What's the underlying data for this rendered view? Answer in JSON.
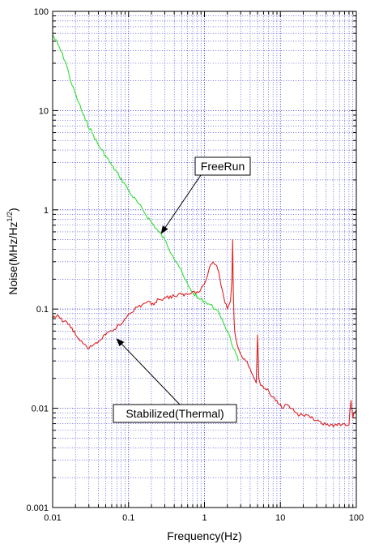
{
  "chart_data": {
    "type": "line",
    "title": "",
    "xlabel": "Frequency(Hz)",
    "ylabel_main": "Noise(MHz/Hz",
    "ylabel_sup": "1/2",
    "ylabel_end": ")",
    "xscale": "log",
    "yscale": "log",
    "xlim": [
      0.01,
      100
    ],
    "ylim": [
      0.001,
      100
    ],
    "grid": true,
    "x_ticks": [
      {
        "value": 0.01,
        "label": "0.01"
      },
      {
        "value": 0.1,
        "label": "0.1"
      },
      {
        "value": 1,
        "label": "1"
      },
      {
        "value": 10,
        "label": "10"
      },
      {
        "value": 100,
        "label": "100"
      }
    ],
    "y_ticks": [
      {
        "value": 0.001,
        "label": "0.001"
      },
      {
        "value": 0.01,
        "label": "0.01"
      },
      {
        "value": 0.1,
        "label": "0.1"
      },
      {
        "value": 1,
        "label": "1"
      },
      {
        "value": 10,
        "label": "10"
      },
      {
        "value": 100,
        "label": "100"
      }
    ],
    "series": [
      {
        "name": "FreeRun",
        "color": "#33dd33",
        "x": [
          0.01,
          0.012,
          0.015,
          0.018,
          0.022,
          0.027,
          0.033,
          0.04,
          0.05,
          0.06,
          0.075,
          0.09,
          0.11,
          0.13,
          0.16,
          0.2,
          0.25,
          0.3,
          0.38,
          0.45,
          0.55,
          0.65,
          0.8,
          1.0,
          1.2,
          1.4,
          1.7,
          2.0,
          2.2,
          2.4,
          2.6,
          2.8
        ],
        "y": [
          58,
          45,
          30,
          18,
          12,
          8,
          6,
          4.5,
          3.5,
          2.8,
          2.2,
          1.8,
          1.4,
          1.2,
          0.95,
          0.75,
          0.6,
          0.5,
          0.35,
          0.28,
          0.2,
          0.16,
          0.13,
          0.12,
          0.11,
          0.1,
          0.08,
          0.06,
          0.05,
          0.04,
          0.035,
          0.03
        ]
      },
      {
        "name": "Stabilized(Thermal)",
        "color": "#dd2222",
        "x": [
          0.01,
          0.012,
          0.014,
          0.016,
          0.018,
          0.02,
          0.022,
          0.025,
          0.028,
          0.03,
          0.033,
          0.036,
          0.04,
          0.045,
          0.05,
          0.06,
          0.07,
          0.08,
          0.1,
          0.12,
          0.15,
          0.18,
          0.2,
          0.25,
          0.3,
          0.4,
          0.5,
          0.6,
          0.7,
          0.8,
          0.9,
          1.0,
          1.1,
          1.2,
          1.3,
          1.4,
          1.5,
          1.6,
          1.7,
          1.8,
          2.0,
          2.2,
          2.3,
          2.35,
          2.4,
          2.45,
          2.5,
          2.6,
          2.8,
          3.0,
          3.5,
          4.0,
          4.5,
          4.8,
          5.0,
          5.2,
          5.5,
          6.0,
          7.0,
          8.0,
          9.0,
          10.0,
          11.0,
          12.0,
          14.0,
          16.0,
          18.0,
          20.0,
          25.0,
          30.0,
          35.0,
          40.0,
          50.0,
          60.0,
          70.0,
          80.0,
          85.0,
          90.0,
          95.0,
          100.0
        ],
        "y": [
          0.08,
          0.085,
          0.075,
          0.07,
          0.065,
          0.055,
          0.05,
          0.045,
          0.042,
          0.04,
          0.042,
          0.045,
          0.047,
          0.05,
          0.055,
          0.06,
          0.066,
          0.07,
          0.09,
          0.1,
          0.11,
          0.12,
          0.11,
          0.125,
          0.13,
          0.135,
          0.14,
          0.14,
          0.15,
          0.15,
          0.16,
          0.18,
          0.22,
          0.28,
          0.3,
          0.28,
          0.25,
          0.2,
          0.16,
          0.13,
          0.1,
          0.12,
          0.2,
          0.5,
          0.15,
          0.08,
          0.06,
          0.05,
          0.04,
          0.035,
          0.03,
          0.025,
          0.02,
          0.018,
          0.055,
          0.02,
          0.017,
          0.016,
          0.015,
          0.013,
          0.012,
          0.011,
          0.01,
          0.011,
          0.01,
          0.009,
          0.0085,
          0.0085,
          0.008,
          0.0075,
          0.007,
          0.0068,
          0.0065,
          0.007,
          0.007,
          0.0068,
          0.012,
          0.008,
          0.009,
          0.0095
        ]
      }
    ],
    "annotations": [
      {
        "text": "FreeRun",
        "points_to": {
          "x": 0.27,
          "y": 0.58
        }
      },
      {
        "text": "Stabilized(Thermal)",
        "points_to": {
          "x": 0.07,
          "y": 0.05
        }
      }
    ]
  }
}
